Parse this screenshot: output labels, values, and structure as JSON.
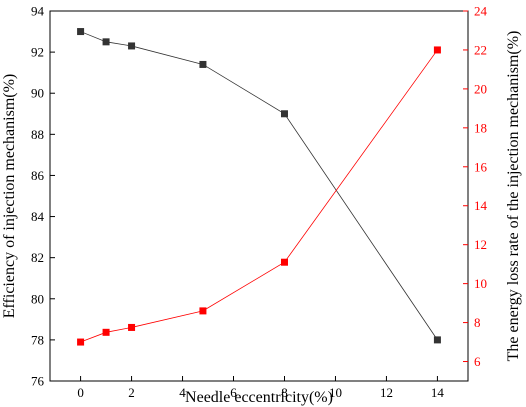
{
  "chart_data": {
    "type": "line",
    "title": "",
    "xlabel": "Needle eccentricity(%)",
    "ylabel_left": "Efficiency of injection mechanism(%)",
    "ylabel_right": "The energy loss rate of the injection mechanism(%)",
    "xlim": [
      -1.2,
      15.2
    ],
    "ylim_left": [
      76,
      94
    ],
    "ylim_right": [
      5,
      24
    ],
    "x_ticks": [
      0,
      2,
      4,
      6,
      8,
      10,
      12,
      14
    ],
    "y_left_ticks": [
      76,
      78,
      80,
      82,
      84,
      86,
      88,
      90,
      92,
      94
    ],
    "y_right_ticks": [
      6,
      8,
      10,
      12,
      14,
      16,
      18,
      20,
      22,
      24
    ],
    "grid": false,
    "legend": "none",
    "colors": {
      "left": "#333333",
      "right": "#ff0000"
    },
    "series": [
      {
        "axis": "left",
        "x": [
          0,
          1,
          2,
          4.8,
          8,
          14
        ],
        "values": [
          93.0,
          92.5,
          92.3,
          91.4,
          89.0,
          78.0
        ]
      },
      {
        "axis": "right",
        "x": [
          0,
          1,
          2,
          4.8,
          8,
          14
        ],
        "values": [
          7.0,
          7.5,
          7.75,
          8.6,
          11.1,
          22.0
        ]
      }
    ]
  }
}
